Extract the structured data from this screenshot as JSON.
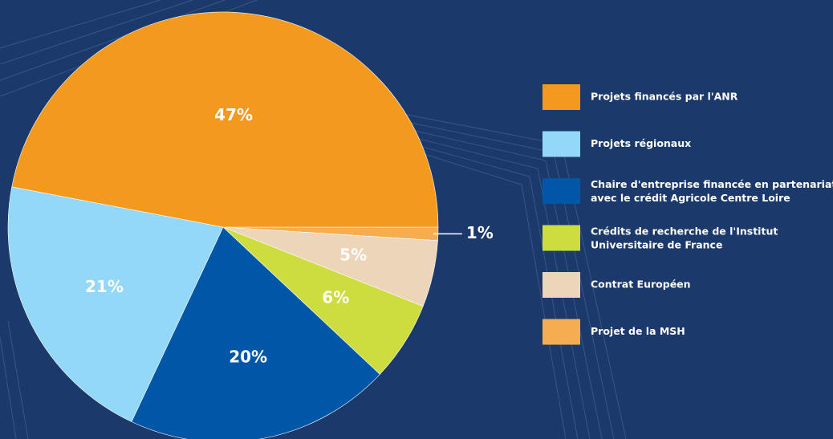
{
  "chart_data": {
    "type": "pie",
    "categories": [
      "Projets financés par l'ANR",
      "Projets régionaux",
      "Chaire d'entreprise financée en partenariat avec le crédit Agricole Centre Loire",
      "Crédits de recherche de l'Institut Universitaire de France",
      "Contrat Européen",
      "Projet de la MSH"
    ],
    "values": [
      47,
      21,
      20,
      6,
      5,
      1
    ],
    "value_labels": [
      "47%",
      "21%",
      "20%",
      "6%",
      "5%",
      "1%"
    ],
    "colors": [
      "#f39a1e",
      "#93d8f8",
      "#0057a8",
      "#cddc3f",
      "#ecd5b8",
      "#f6ad4f"
    ]
  }
}
